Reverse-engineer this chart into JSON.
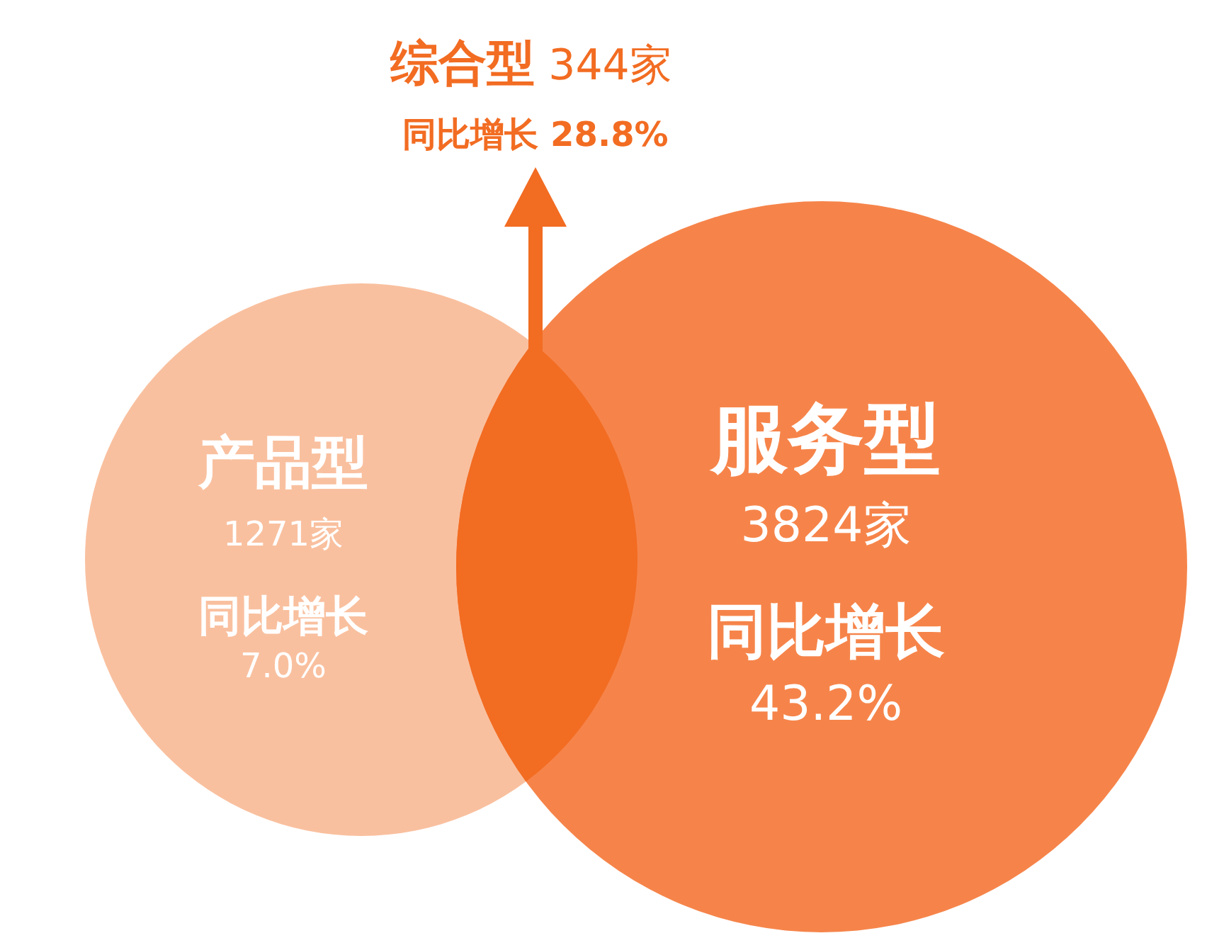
{
  "chart_data": {
    "type": "other",
    "categories": [
      "产品型",
      "服务型",
      "综合型"
    ],
    "series": [
      {
        "values": [
          1271,
          3824,
          344
        ],
        "value_labels": [
          "1271家",
          "3824家",
          "344家"
        ],
        "colors": [
          "#f9c09f",
          "#f6844a",
          "#f26c22"
        ]
      },
      {
        "name": "同比增长",
        "values": [
          7.0,
          43.2,
          28.8
        ],
        "value_labels": [
          "7.0%",
          "43.2%",
          "28.8%"
        ]
      }
    ]
  }
}
